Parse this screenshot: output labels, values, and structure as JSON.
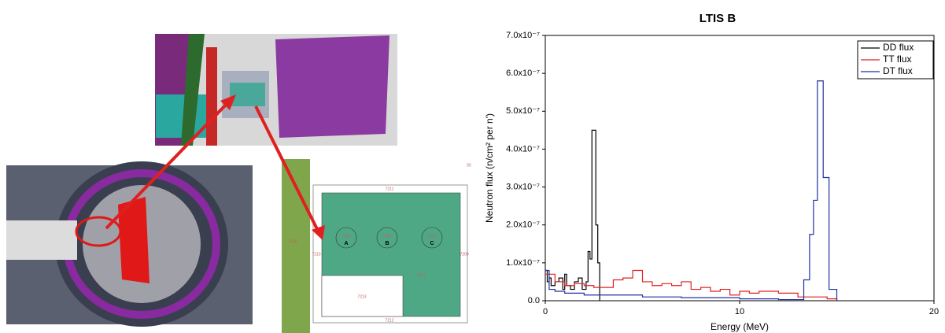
{
  "chart_data": {
    "type": "line",
    "step": "post",
    "title": "LTIS B",
    "xlabel": "Energy (MeV)",
    "ylabel": "Neutron flux (n/cm² per n')",
    "xlim": [
      0,
      20
    ],
    "xticks": [
      0,
      10,
      20
    ],
    "ylim": [
      0,
      7e-07
    ],
    "yticks": [
      {
        "value": 0,
        "label": "0.0"
      },
      {
        "value": 1e-07,
        "label": "1.0x10⁻⁷"
      },
      {
        "value": 2e-07,
        "label": "2.0x10⁻⁷"
      },
      {
        "value": 3e-07,
        "label": "3.0x10⁻⁷"
      },
      {
        "value": 4e-07,
        "label": "4.0x10⁻⁷"
      },
      {
        "value": 5e-07,
        "label": "5.0x10⁻⁷"
      },
      {
        "value": 6e-07,
        "label": "6.0x10⁻⁷"
      },
      {
        "value": 7e-07,
        "label": "7.0x10⁻⁷"
      }
    ],
    "legend": "upper right",
    "series": [
      {
        "name": "DD flux",
        "color": "#000000",
        "x": [
          0,
          0.1,
          0.2,
          0.3,
          0.5,
          0.7,
          0.9,
          1.0,
          1.1,
          1.3,
          1.5,
          1.7,
          1.9,
          2.1,
          2.2,
          2.3,
          2.4,
          2.5,
          2.6,
          2.7,
          2.8
        ],
        "values": [
          8e-08,
          5e-08,
          6e-08,
          4e-08,
          5e-08,
          6e-08,
          3e-08,
          7e-08,
          4e-08,
          3e-08,
          5e-08,
          6e-08,
          3e-08,
          5e-08,
          1.3e-07,
          1.1e-07,
          4.5e-07,
          4.5e-07,
          2e-07,
          1e-07,
          0
        ]
      },
      {
        "name": "TT flux",
        "color": "#e02020",
        "x": [
          0,
          0.5,
          1,
          1.5,
          2,
          2.5,
          3,
          3.5,
          4,
          4.5,
          5,
          5.5,
          6,
          6.5,
          7,
          7.5,
          8,
          8.5,
          9,
          9.5,
          10,
          10.5,
          11,
          12,
          13,
          14,
          14.5,
          15
        ],
        "values": [
          7e-08,
          5e-08,
          4e-08,
          4.5e-08,
          4e-08,
          3.5e-08,
          3.5e-08,
          5.5e-08,
          6e-08,
          8e-08,
          5e-08,
          4e-08,
          4.5e-08,
          4e-08,
          5e-08,
          3e-08,
          3.5e-08,
          2.5e-08,
          3e-08,
          1.5e-08,
          2.5e-08,
          2e-08,
          2.5e-08,
          2e-08,
          1e-08,
          1e-08,
          5e-09,
          0
        ]
      },
      {
        "name": "DT flux",
        "color": "#2030a0",
        "x": [
          0,
          0.2,
          0.5,
          1,
          2,
          3,
          4,
          5,
          6,
          7,
          8,
          9,
          10,
          11,
          12,
          13,
          13.3,
          13.6,
          13.8,
          14,
          14.3,
          14.6,
          15
        ],
        "values": [
          8e-08,
          3e-08,
          2.5e-08,
          2e-08,
          1.5e-08,
          1.5e-08,
          1.5e-08,
          1e-08,
          1e-08,
          8e-09,
          8e-09,
          8e-09,
          5e-09,
          5e-09,
          3e-09,
          3e-09,
          5.5e-08,
          1.75e-07,
          2.65e-07,
          5.8e-07,
          3.25e-07,
          3e-08,
          0
        ]
      }
    ]
  },
  "diagram": {
    "labels": [
      "7211",
      "7206",
      "A",
      "7205",
      "B",
      "7204",
      "C",
      "7202",
      "7213",
      "7212",
      "7210",
      "7209",
      "7515",
      "55"
    ]
  }
}
